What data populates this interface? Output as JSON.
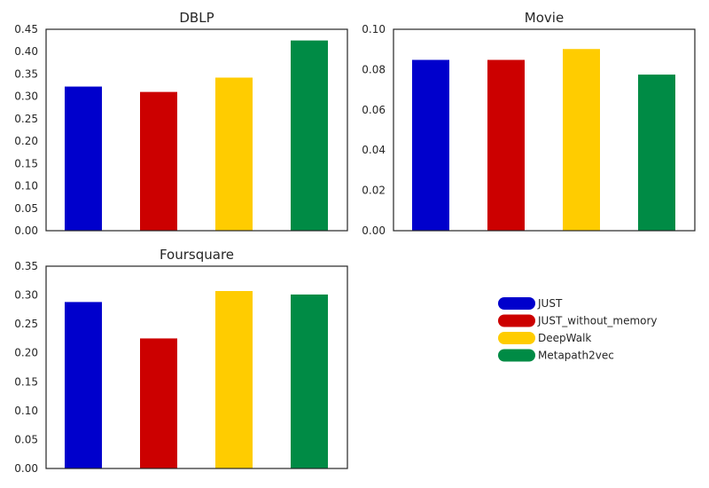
{
  "legend": {
    "entries": [
      {
        "label": "JUST",
        "color": "#0000cc"
      },
      {
        "label": "JUST_without_memory",
        "color": "#cc0000"
      },
      {
        "label": "DeepWalk",
        "color": "#ffcc00"
      },
      {
        "label": "Metapath2vec",
        "color": "#008b45"
      }
    ],
    "placement": "lower-right"
  },
  "chart_data": [
    {
      "type": "bar",
      "title": "DBLP",
      "categories": [
        "JUST",
        "JUST_without_memory",
        "DeepWalk",
        "Metapath2vec"
      ],
      "values": [
        0.322,
        0.31,
        0.342,
        0.425
      ],
      "ylim": [
        0,
        0.45
      ],
      "yticks": [
        "0.00",
        "0.05",
        "0.10",
        "0.15",
        "0.20",
        "0.25",
        "0.30",
        "0.35",
        "0.40",
        "0.45"
      ],
      "grid": false
    },
    {
      "type": "bar",
      "title": "Movie",
      "categories": [
        "JUST",
        "JUST_without_memory",
        "DeepWalk",
        "Metapath2vec"
      ],
      "values": [
        0.0848,
        0.0848,
        0.0902,
        0.0775
      ],
      "ylim": [
        0,
        0.1
      ],
      "yticks": [
        "0.00",
        "0.02",
        "0.04",
        "0.06",
        "0.08",
        "0.10"
      ],
      "grid": false
    },
    {
      "type": "bar",
      "title": "Foursquare",
      "categories": [
        "JUST",
        "JUST_without_memory",
        "DeepWalk",
        "Metapath2vec"
      ],
      "values": [
        0.288,
        0.225,
        0.307,
        0.301
      ],
      "ylim": [
        0,
        0.35
      ],
      "yticks": [
        "0.00",
        "0.05",
        "0.10",
        "0.15",
        "0.20",
        "0.25",
        "0.30",
        "0.35"
      ],
      "grid": false
    }
  ]
}
